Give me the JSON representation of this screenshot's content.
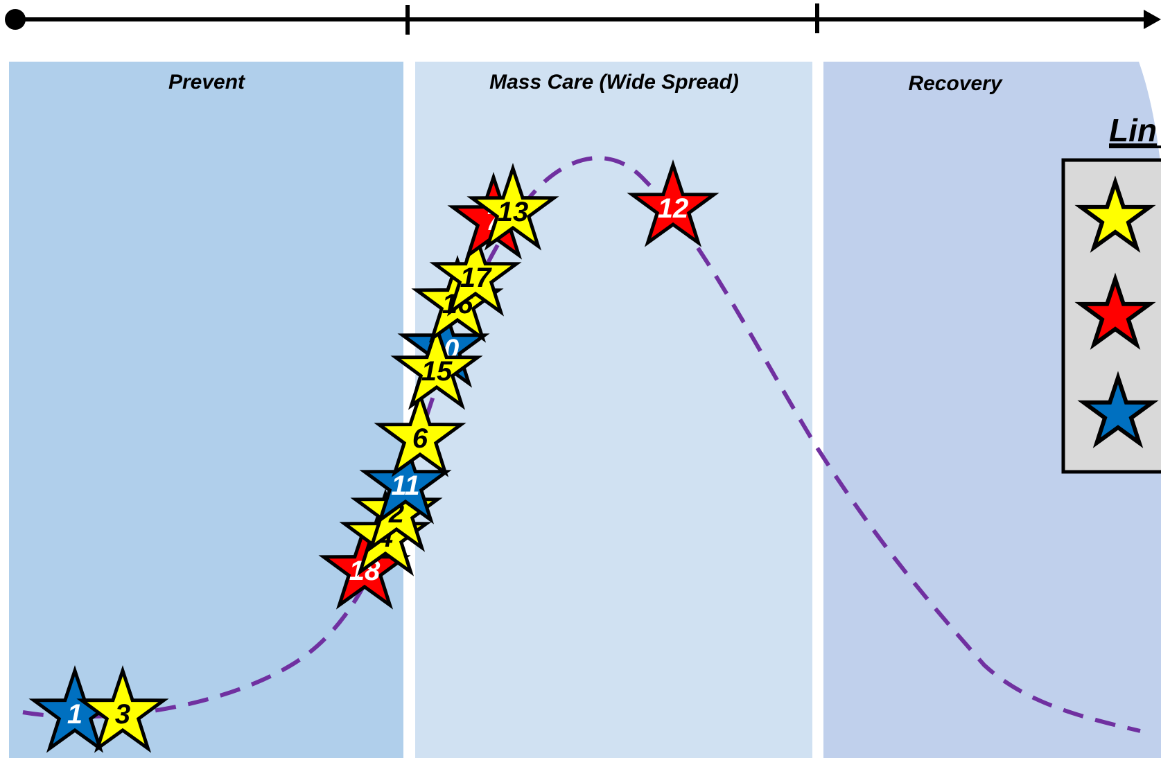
{
  "timeline": {
    "ticks": 2
  },
  "phases": [
    {
      "label": "Prevent",
      "fill": "#b0cfeb"
    },
    {
      "label": "Mass Care (Wide Spread)",
      "fill": "#d0e1f2"
    },
    {
      "label": "Recovery",
      "fill": "#c0d0ec"
    }
  ],
  "curve": {
    "color": "#7030a0",
    "style": "dashed"
  },
  "legend": {
    "title": "Lin",
    "box_fill": "#d9d9d9",
    "items": [
      {
        "icon": "yellow-star-icon",
        "color": "#ffff00"
      },
      {
        "icon": "red-star-icon",
        "color": "#ff0000"
      },
      {
        "icon": "blue-star-icon",
        "color": "#0070c0"
      }
    ]
  },
  "colors": {
    "yellow": "#ffff00",
    "red": "#ff0000",
    "blue": "#0070c0"
  },
  "markers": [
    {
      "num": "1",
      "color": "blue"
    },
    {
      "num": "3",
      "color": "yellow"
    },
    {
      "num": "18",
      "color": "red"
    },
    {
      "num": "4",
      "color": "yellow"
    },
    {
      "num": "2",
      "color": "yellow"
    },
    {
      "num": "11",
      "color": "blue"
    },
    {
      "num": "6",
      "color": "yellow"
    },
    {
      "num": "10",
      "color": "blue"
    },
    {
      "num": "15",
      "color": "yellow"
    },
    {
      "num": "16",
      "color": "yellow"
    },
    {
      "num": "17",
      "color": "yellow"
    },
    {
      "num": "7",
      "color": "red"
    },
    {
      "num": "13",
      "color": "yellow"
    },
    {
      "num": "12",
      "color": "red"
    }
  ]
}
